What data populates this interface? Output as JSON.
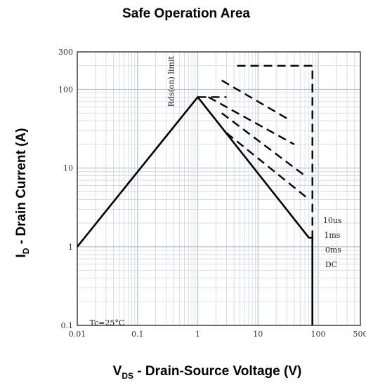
{
  "chart_data": {
    "type": "line",
    "title": "Safe Operation Area",
    "xlabel": {
      "main": "V",
      "sub": "DS",
      "rest": " - Drain-Source Voltage (V)"
    },
    "ylabel": {
      "main": "I",
      "sub": "D",
      "rest": " - Drain Current (A)"
    },
    "x_scale": "log",
    "y_scale": "log",
    "xlim": [
      0.01,
      500
    ],
    "ylim": [
      0.1,
      300
    ],
    "grid": true,
    "x_ticks": [
      {
        "value": 0.01,
        "label": "0.01"
      },
      {
        "value": 0.1,
        "label": "0.1"
      },
      {
        "value": 1,
        "label": "1"
      },
      {
        "value": 10,
        "label": "10"
      },
      {
        "value": 100,
        "label": "100"
      },
      {
        "value": 500,
        "label": "500"
      }
    ],
    "y_ticks": [
      {
        "value": 0.1,
        "label": "0.1"
      },
      {
        "value": 1,
        "label": "1"
      },
      {
        "value": 10,
        "label": "10"
      },
      {
        "value": 100,
        "label": "100"
      },
      {
        "value": 300,
        "label": "300"
      }
    ],
    "series": [
      {
        "name": "10us",
        "style": "dashed",
        "x": [
          4.5,
          80,
          80
        ],
        "y": [
          200,
          200,
          1
        ]
      },
      {
        "name": "1ms",
        "style": "dashed",
        "x": [
          2.5,
          35
        ],
        "y": [
          130,
          40
        ]
      },
      {
        "name": "",
        "style": "dashed",
        "x": [
          1.5,
          40
        ],
        "y": [
          80,
          20
        ]
      },
      {
        "name": "",
        "style": "dashed",
        "x": [
          1,
          3
        ],
        "y": [
          80,
          80
        ]
      },
      {
        "name": "",
        "style": "dashed",
        "x": [
          2.5,
          60
        ],
        "y": [
          50,
          8
        ]
      },
      {
        "name": "",
        "style": "dashed",
        "x": [
          3,
          70
        ],
        "y": [
          28,
          4
        ]
      },
      {
        "name": "DC",
        "style": "solid",
        "x": [
          0.01,
          1,
          70,
          80,
          80
        ],
        "y": [
          1,
          80,
          1.3,
          1.3,
          0.1
        ]
      }
    ],
    "annotations": [
      {
        "text": "Rds(on) limit",
        "x": 0.4,
        "y": 60,
        "rotation": -90
      },
      {
        "text": "10us",
        "x": 120,
        "y": 2.0
      },
      {
        "text": "1ms",
        "x": 125,
        "y": 1.3
      },
      {
        "text": "0ms",
        "x": 130,
        "y": 0.85
      },
      {
        "text": "DC",
        "x": 130,
        "y": 0.55
      },
      {
        "text": "Tc=25°C",
        "x": 0.016,
        "y": 0.1
      }
    ],
    "colors": {
      "lines": "#000000",
      "grid": "#d0d6dd",
      "axis": "#222222"
    }
  }
}
